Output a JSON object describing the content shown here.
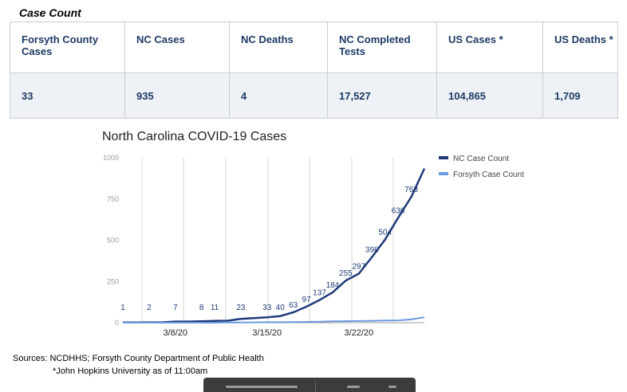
{
  "section_title": "Case Count",
  "table": {
    "headers": [
      "Forsyth County Cases",
      "NC Cases",
      "NC Deaths",
      "NC Completed Tests",
      "US Cases *",
      "US Deaths *"
    ],
    "values": [
      "33",
      "935",
      "4",
      "17,527",
      "104,865",
      "1,709"
    ]
  },
  "chart_data": {
    "type": "line",
    "title": "North Carolina COVID-19 Cases",
    "xlabel": "",
    "ylabel": "",
    "ylim": [
      0,
      1000
    ],
    "yticks": [
      "0",
      "250",
      "500",
      "750",
      "1000"
    ],
    "xtick_labels": [
      "3/8/20",
      "3/15/20",
      "3/22/20"
    ],
    "xtick_index": [
      4,
      11,
      18
    ],
    "grid": true,
    "legend_position": "top-right",
    "series": [
      {
        "name": "NC Case Count",
        "color": "#1f3a7a",
        "values": [
          1,
          1,
          2,
          2,
          7,
          7,
          8,
          11,
          12,
          23,
          28,
          33,
          40,
          63,
          97,
          137,
          184,
          255,
          297,
          398,
          504,
          636,
          763,
          935
        ]
      },
      {
        "name": "Forsyth Case Count",
        "color": "#6b9ae0",
        "values": [
          0,
          0,
          0,
          0,
          0,
          0,
          0,
          0,
          1,
          1,
          2,
          3,
          3,
          4,
          5,
          6,
          8,
          9,
          10,
          11,
          13,
          14,
          20,
          33
        ]
      }
    ],
    "data_labels": [
      {
        "index": 0,
        "text": "1"
      },
      {
        "index": 2,
        "text": "2"
      },
      {
        "index": 4,
        "text": "7"
      },
      {
        "index": 6,
        "text": "8"
      },
      {
        "index": 7,
        "text": "11"
      },
      {
        "index": 9,
        "text": "23"
      },
      {
        "index": 11,
        "text": "33"
      },
      {
        "index": 12,
        "text": "40"
      },
      {
        "index": 13,
        "text": "63"
      },
      {
        "index": 14,
        "text": "97"
      },
      {
        "index": 15,
        "text": "137"
      },
      {
        "index": 16,
        "text": "184"
      },
      {
        "index": 17,
        "text": "255"
      },
      {
        "index": 18,
        "text": "297"
      },
      {
        "index": 19,
        "text": "398"
      },
      {
        "index": 20,
        "text": "504"
      },
      {
        "index": 21,
        "text": "636"
      },
      {
        "index": 22,
        "text": "763"
      }
    ]
  },
  "sources": "Sources: NCDHHS; Forsyth County Department of Public Health",
  "footnote": "*John Hopkins University as of 11:00am"
}
